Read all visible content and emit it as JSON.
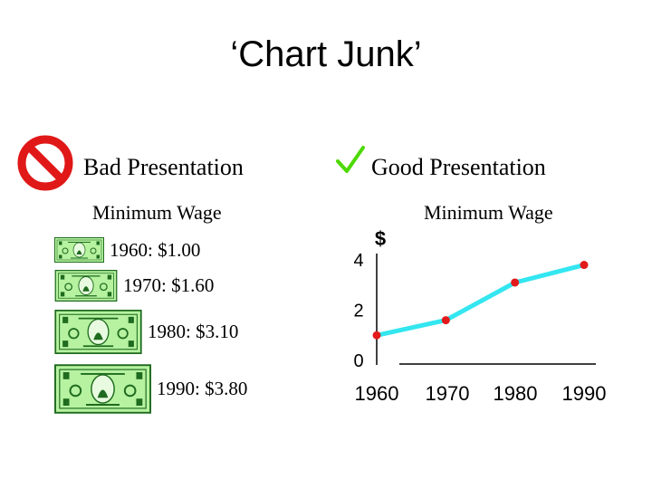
{
  "slide": {
    "title": "‘Chart Junk’"
  },
  "left": {
    "heading": "Bad Presentation",
    "subheading": "Minimum Wage",
    "icon": "prohibited-icon",
    "items": [
      {
        "label": "1960: $1.00",
        "bill_scale": 1.0
      },
      {
        "label": "1970: $1.60",
        "bill_scale": 1.6
      },
      {
        "label": "1980: $3.10",
        "bill_scale": 3.1
      },
      {
        "label": "1990: $3.80",
        "bill_scale": 3.8
      }
    ]
  },
  "right": {
    "heading": "Good Presentation",
    "subheading": "Minimum Wage",
    "icon": "checkmark-icon"
  },
  "colors": {
    "bill_green": "#b6f2a0",
    "bill_dark": "#1f6b1f",
    "line": "#33e6f0",
    "point": "#e31a1c",
    "prohibit": "#e01818",
    "check": "#4cd900"
  },
  "chart_data": {
    "type": "line",
    "title": "Minimum Wage",
    "x": [
      1960,
      1970,
      1980,
      1990
    ],
    "values": [
      1.0,
      1.6,
      3.1,
      3.8
    ],
    "x_tick_labels": [
      "1960",
      "1970",
      "1980",
      "1990"
    ],
    "y_ticks": [
      0,
      2,
      4
    ],
    "y_tick_labels": [
      "0",
      "2",
      "4"
    ],
    "ylabel": "$",
    "ylim": [
      0,
      4
    ],
    "grid": false
  }
}
